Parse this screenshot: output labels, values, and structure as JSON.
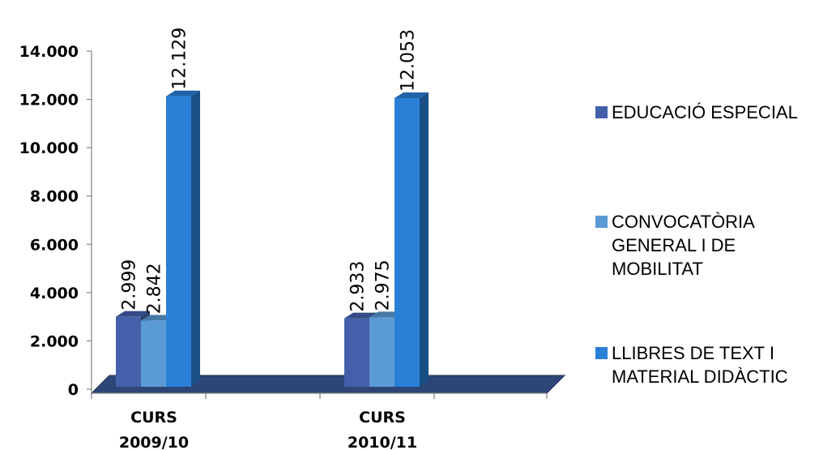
{
  "chart_data": {
    "type": "bar",
    "categories": [
      "CURS 2009/10",
      "CURS 2010/11"
    ],
    "category_lines": [
      [
        "CURS",
        "2009/10"
      ],
      [
        "CURS",
        "2010/11"
      ]
    ],
    "series": [
      {
        "name": "EDUCACIÓ ESPECIAL",
        "values": [
          2999,
          2933
        ],
        "labels": [
          "2.999",
          "2.933"
        ],
        "color": "#4460AA"
      },
      {
        "name": "CONVOCATÒRIA GENERAL I DE MOBILITAT",
        "values": [
          2842,
          2975
        ],
        "labels": [
          "2.842",
          "2.975"
        ],
        "color": "#5B9BD5"
      },
      {
        "name": "LLIBRES DE TEXT I MATERIAL DIDÀCTIC",
        "values": [
          12129,
          12053
        ],
        "labels": [
          "12.129",
          "12.053"
        ],
        "color": "#2A7FD6"
      }
    ],
    "y_ticks": [
      "0",
      "2.000",
      "4.000",
      "6.000",
      "8.000",
      "10.000",
      "12.000",
      "14.000"
    ],
    "ylim": [
      0,
      14000
    ],
    "legend_position": "right",
    "grid": false,
    "three_d": true,
    "floor_color": "#2E4677"
  }
}
